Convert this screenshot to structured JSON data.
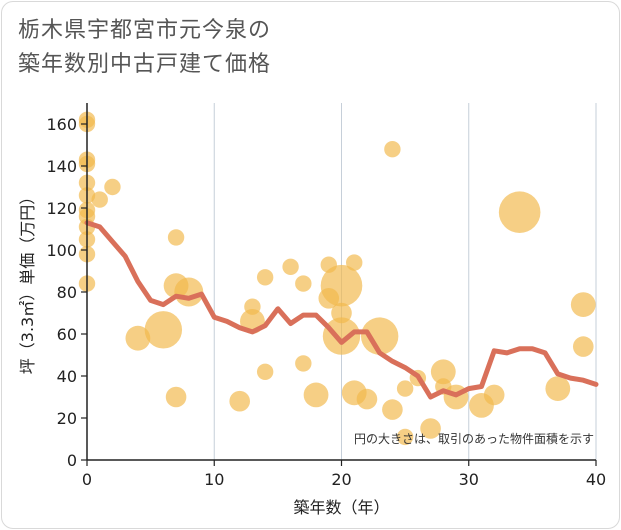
{
  "chart_data": {
    "type": "scatter",
    "title": "栃木県宇都宮市元今泉の\n築年数別中古戸建て価格",
    "xlabel": "築年数（年）",
    "ylabel": "坪（3.3㎡）単価（万円）",
    "xlim": [
      0,
      40
    ],
    "ylim": [
      0,
      170
    ],
    "x_ticks": [
      0,
      10,
      20,
      30,
      40
    ],
    "y_ticks": [
      0,
      20,
      40,
      60,
      80,
      100,
      120,
      140,
      160
    ],
    "note": "円の大きさは、取引のあった物件面積を示す",
    "colors": {
      "bubble": "#f2b84b",
      "line": "#d9705a",
      "grid": "#c6cfd9",
      "axis": "#222222"
    },
    "points": [
      {
        "x": 0,
        "y": 162,
        "size": 2
      },
      {
        "x": 0,
        "y": 160,
        "size": 2
      },
      {
        "x": 0,
        "y": 143,
        "size": 2
      },
      {
        "x": 0,
        "y": 141,
        "size": 2
      },
      {
        "x": 0,
        "y": 132,
        "size": 2
      },
      {
        "x": 0,
        "y": 126,
        "size": 2
      },
      {
        "x": 0,
        "y": 119,
        "size": 2
      },
      {
        "x": 0,
        "y": 116,
        "size": 2
      },
      {
        "x": 0,
        "y": 111,
        "size": 2
      },
      {
        "x": 0,
        "y": 105,
        "size": 2
      },
      {
        "x": 0,
        "y": 98,
        "size": 2
      },
      {
        "x": 0,
        "y": 84,
        "size": 2
      },
      {
        "x": 1,
        "y": 124,
        "size": 2
      },
      {
        "x": 2,
        "y": 130,
        "size": 2
      },
      {
        "x": 4,
        "y": 58,
        "size": 4
      },
      {
        "x": 6,
        "y": 62,
        "size": 7
      },
      {
        "x": 7,
        "y": 106,
        "size": 2
      },
      {
        "x": 7,
        "y": 83,
        "size": 4
      },
      {
        "x": 7,
        "y": 30,
        "size": 3
      },
      {
        "x": 8,
        "y": 80,
        "size": 5
      },
      {
        "x": 12,
        "y": 28,
        "size": 3
      },
      {
        "x": 13,
        "y": 73,
        "size": 2
      },
      {
        "x": 13,
        "y": 66,
        "size": 4
      },
      {
        "x": 14,
        "y": 87,
        "size": 2
      },
      {
        "x": 14,
        "y": 42,
        "size": 2
      },
      {
        "x": 16,
        "y": 92,
        "size": 2
      },
      {
        "x": 17,
        "y": 84,
        "size": 2
      },
      {
        "x": 17,
        "y": 46,
        "size": 2
      },
      {
        "x": 18,
        "y": 31,
        "size": 4
      },
      {
        "x": 19,
        "y": 93,
        "size": 2
      },
      {
        "x": 19,
        "y": 77,
        "size": 3
      },
      {
        "x": 20,
        "y": 83,
        "size": 8
      },
      {
        "x": 20,
        "y": 70,
        "size": 3
      },
      {
        "x": 20,
        "y": 59,
        "size": 7
      },
      {
        "x": 21,
        "y": 94,
        "size": 2
      },
      {
        "x": 21,
        "y": 32,
        "size": 4
      },
      {
        "x": 22,
        "y": 29,
        "size": 3
      },
      {
        "x": 23,
        "y": 59,
        "size": 7
      },
      {
        "x": 24,
        "y": 148,
        "size": 2
      },
      {
        "x": 24,
        "y": 24,
        "size": 3
      },
      {
        "x": 25,
        "y": 34,
        "size": 2
      },
      {
        "x": 25,
        "y": 11,
        "size": 2
      },
      {
        "x": 26,
        "y": 39,
        "size": 2
      },
      {
        "x": 27,
        "y": 15,
        "size": 3
      },
      {
        "x": 28,
        "y": 42,
        "size": 4
      },
      {
        "x": 28,
        "y": 35,
        "size": 2
      },
      {
        "x": 29,
        "y": 30,
        "size": 4
      },
      {
        "x": 31,
        "y": 26,
        "size": 4
      },
      {
        "x": 32,
        "y": 31,
        "size": 3
      },
      {
        "x": 34,
        "y": 118,
        "size": 8
      },
      {
        "x": 37,
        "y": 34,
        "size": 4
      },
      {
        "x": 39,
        "y": 74,
        "size": 4
      },
      {
        "x": 39,
        "y": 54,
        "size": 3
      }
    ],
    "trend": {
      "x": [
        0,
        1,
        2,
        3,
        4,
        5,
        6,
        7,
        8,
        9,
        10,
        11,
        12,
        13,
        14,
        15,
        16,
        17,
        18,
        19,
        20,
        21,
        22,
        23,
        24,
        25,
        26,
        27,
        28,
        29,
        30,
        31,
        32,
        33,
        34,
        35,
        36,
        37,
        38,
        39,
        40
      ],
      "y": [
        113,
        111,
        104,
        97,
        85,
        76,
        74,
        78,
        77,
        79,
        68,
        66,
        63,
        61,
        64,
        72,
        65,
        69,
        69,
        63,
        56,
        61,
        61,
        51,
        47,
        44,
        40,
        30,
        33,
        31,
        34,
        35,
        52,
        51,
        53,
        53,
        51,
        41,
        39,
        38,
        36
      ]
    }
  }
}
